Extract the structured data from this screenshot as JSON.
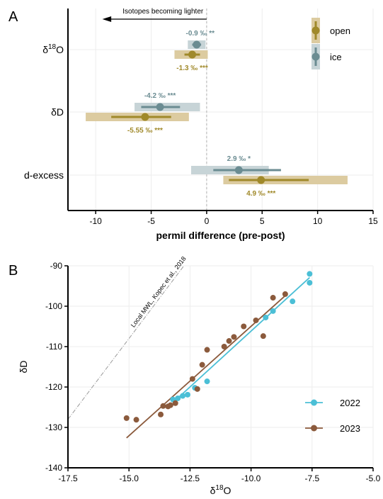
{
  "colors": {
    "open": "#a0892a",
    "open_light": "#dccba0",
    "ice": "#6b8c92",
    "ice_light": "#c7d4d7",
    "y2022": "#4bbfd6",
    "y2023": "#8b5a3c",
    "mwl": "#9a9a9a"
  },
  "chart_data": [
    {
      "panel_label": "A",
      "type": "forest",
      "xlabel": "permil difference (pre-post)",
      "xlim": [
        -12.5,
        15
      ],
      "xticks": [
        -10,
        -5,
        0,
        5,
        10,
        15
      ],
      "arrow_label": "Isotopes becoming lighter",
      "legend": {
        "position": "top-right",
        "entries": [
          {
            "key": "open",
            "label": "open"
          },
          {
            "key": "ice",
            "label": "ice"
          }
        ]
      },
      "rows": [
        {
          "label": "δ18O",
          "label_main": "δ",
          "label_sup": "18",
          "label_tail": "O",
          "ice": {
            "mean": -0.9,
            "ci_narrow": [
              -1.3,
              -0.5
            ],
            "ci_wide": [
              -1.7,
              -0.1
            ],
            "annotation": "-0.9 ‰ **"
          },
          "open": {
            "mean": -1.3,
            "ci_narrow": [
              -2.0,
              -0.6
            ],
            "ci_wide": [
              -2.9,
              0.1
            ],
            "annotation": "-1.3 ‰ ***"
          }
        },
        {
          "label": "δD",
          "label_main": "δD",
          "label_sup": "",
          "label_tail": "",
          "ice": {
            "mean": -4.2,
            "ci_narrow": [
              -5.9,
              -2.4
            ],
            "ci_wide": [
              -6.5,
              -0.6
            ],
            "annotation": "-4.2 ‰ ***"
          },
          "open": {
            "mean": -5.55,
            "ci_narrow": [
              -8.6,
              -3.2
            ],
            "ci_wide": [
              -10.9,
              -1.6
            ],
            "annotation": "-5.55 ‰ ***"
          }
        },
        {
          "label": "d-excess",
          "label_main": "d-excess",
          "label_sup": "",
          "label_tail": "",
          "ice": {
            "mean": 2.9,
            "ci_narrow": [
              0.6,
              6.7
            ],
            "ci_wide": [
              -1.4,
              5.6
            ],
            "annotation": "2.9 ‰ *"
          },
          "open": {
            "mean": 4.9,
            "ci_narrow": [
              2.0,
              9.2
            ],
            "ci_wide": [
              1.5,
              12.7
            ],
            "annotation": "4.9 ‰ ***"
          }
        }
      ]
    },
    {
      "panel_label": "B",
      "type": "scatter",
      "xlabel_main": "δ",
      "xlabel_sup": "18",
      "xlabel_tail": "O",
      "ylabel": "δD",
      "xlim": [
        -17.5,
        -5.0
      ],
      "ylim": [
        -140,
        -90
      ],
      "xticks": [
        -17.5,
        -15.0,
        -12.5,
        -10.0,
        -7.5,
        -5.0
      ],
      "yticks": [
        -90,
        -100,
        -110,
        -120,
        -130,
        -140
      ],
      "mwl_label": "Local MWL, Kopec et al., 2018",
      "mwl": {
        "slope": 8.0,
        "intercept": 12.0
      },
      "legend": {
        "position": "right",
        "entries": [
          {
            "key": "2022",
            "label": "2022"
          },
          {
            "key": "2023",
            "label": "2023"
          }
        ]
      },
      "series": [
        {
          "name": "2022",
          "key": "y2022",
          "fit": [
            [
              -13.1,
              -123.3
            ],
            [
              -7.6,
              -92.9
            ]
          ],
          "points": [
            [
              -7.6,
              -92.0
            ],
            [
              -7.6,
              -94.2
            ],
            [
              -8.3,
              -98.8
            ],
            [
              -9.1,
              -101.2
            ],
            [
              -9.4,
              -102.8
            ],
            [
              -11.8,
              -118.6
            ],
            [
              -12.3,
              -120.2
            ],
            [
              -12.6,
              -121.9
            ],
            [
              -12.8,
              -122.2
            ],
            [
              -13.0,
              -122.8
            ],
            [
              -13.2,
              -123.1
            ]
          ]
        },
        {
          "name": "2023",
          "key": "y2023",
          "fit": [
            [
              -15.1,
              -132.6
            ],
            [
              -8.6,
              -97.4
            ]
          ],
          "points": [
            [
              -8.6,
              -97.0
            ],
            [
              -9.1,
              -97.9
            ],
            [
              -9.8,
              -103.5
            ],
            [
              -10.3,
              -105.0
            ],
            [
              -10.7,
              -107.6
            ],
            [
              -10.9,
              -108.6
            ],
            [
              -11.1,
              -110.0
            ],
            [
              -11.8,
              -110.8
            ],
            [
              -12.0,
              -114.5
            ],
            [
              -12.4,
              -118.0
            ],
            [
              -12.2,
              -120.5
            ],
            [
              -13.1,
              -124.0
            ],
            [
              -13.3,
              -124.5
            ],
            [
              -13.4,
              -124.8
            ],
            [
              -13.6,
              -124.7
            ],
            [
              -13.7,
              -126.8
            ],
            [
              -14.7,
              -128.1
            ],
            [
              -15.1,
              -127.7
            ],
            [
              -9.5,
              -107.4
            ]
          ]
        }
      ]
    }
  ]
}
